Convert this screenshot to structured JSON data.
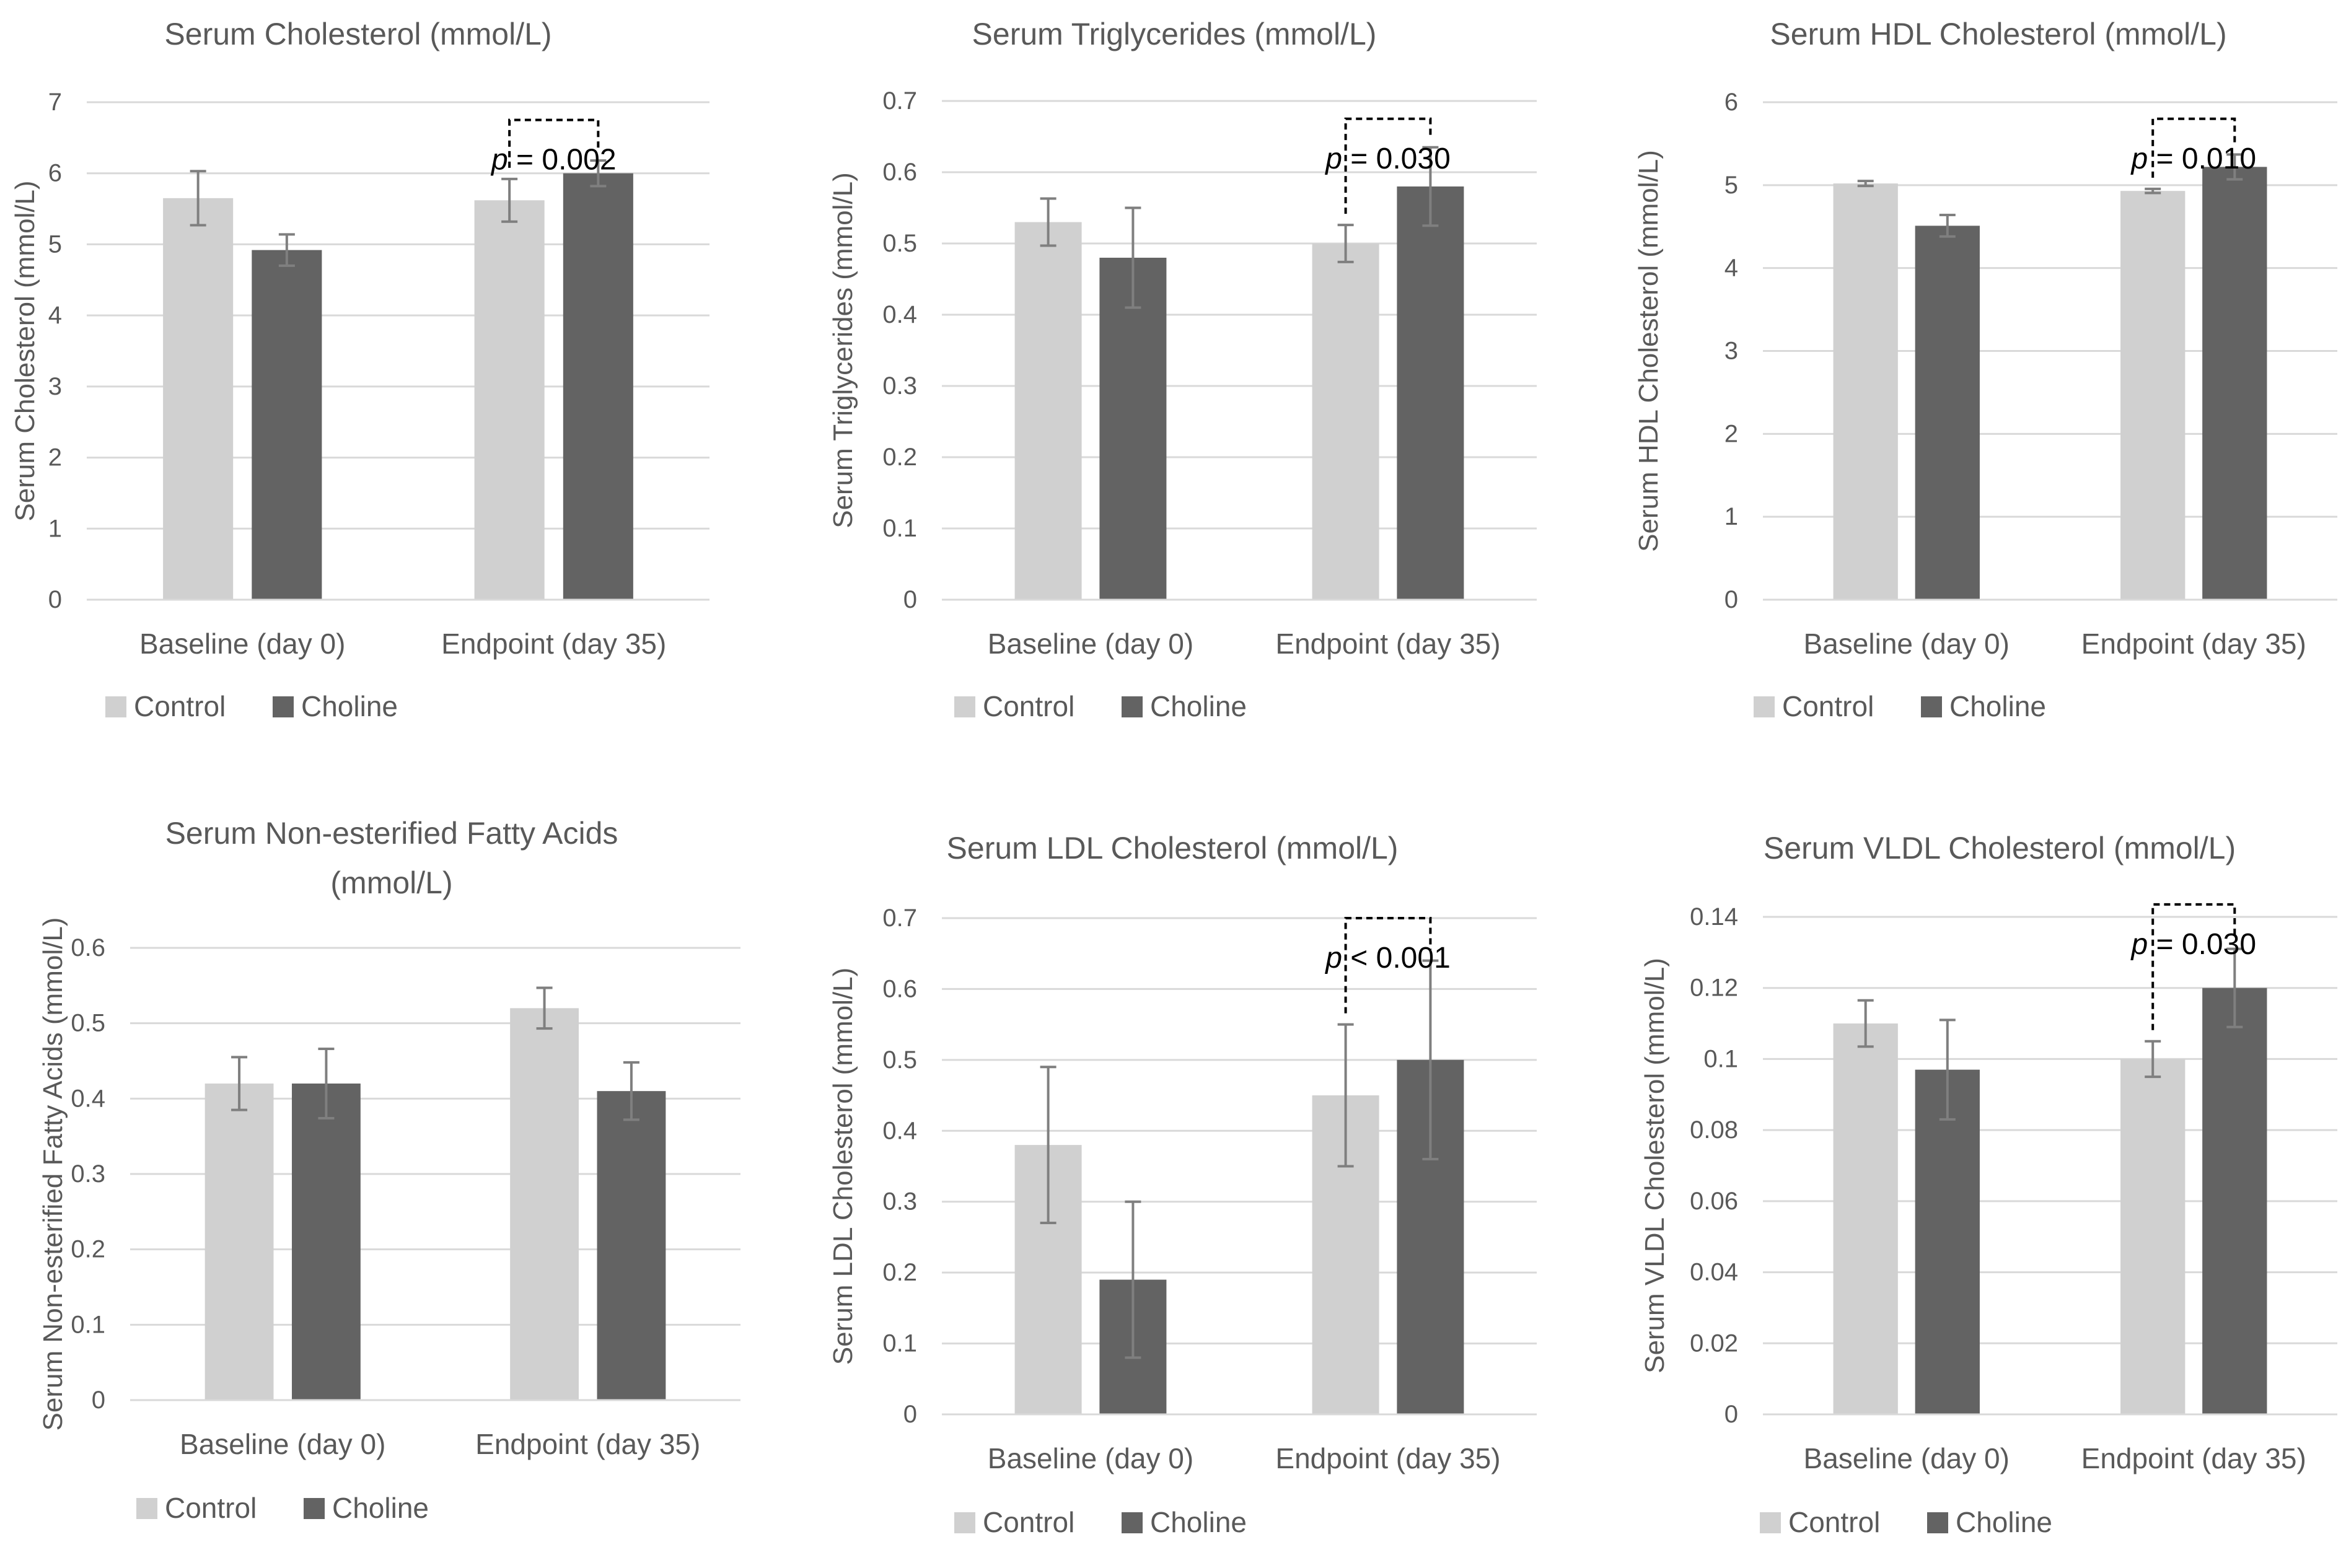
{
  "colors": {
    "control": "#d0d0d0",
    "choline": "#636363",
    "axis_text": "#595959",
    "gridline": "#d9d9d9",
    "error_bar": "#7f7f7f",
    "bracket": "#000000"
  },
  "chart_data": [
    {
      "type": "bar",
      "title": "Serum Cholesterol (mmol/L)",
      "ylabel": "Serum Cholesterol (mmol/L)",
      "xlabel": "",
      "categories": [
        "Baseline (day 0)",
        "Endpoint (day 35)"
      ],
      "ylim": [
        0,
        7
      ],
      "yticks": [
        0,
        1,
        2,
        3,
        4,
        5,
        6,
        7
      ],
      "ytick_labels": [
        "0",
        "1",
        "2",
        "3",
        "4",
        "5",
        "6",
        "7"
      ],
      "grid": true,
      "legend": "bottom",
      "series": [
        {
          "name": "Control",
          "values": [
            5.65,
            5.62
          ],
          "errors": [
            0.38,
            0.3
          ]
        },
        {
          "name": "Choline",
          "values": [
            4.92,
            6.0
          ],
          "errors": [
            0.22,
            0.18
          ]
        }
      ],
      "annotation": {
        "p_label": "p",
        "p_text": " = 0.002",
        "from": [
          0,
          1
        ],
        "to": [
          1,
          1
        ],
        "y": 6.75
      }
    },
    {
      "type": "bar",
      "title": "Serum Triglycerides (mmol/L)",
      "ylabel": "Serum Triglycerides (mmol/L)",
      "xlabel": "",
      "categories": [
        "Baseline (day 0)",
        "Endpoint (day 35)"
      ],
      "ylim": [
        0,
        0.7
      ],
      "yticks": [
        0,
        0.1,
        0.2,
        0.3,
        0.4,
        0.5,
        0.6,
        0.7
      ],
      "ytick_labels": [
        "0",
        "0.1",
        "0.2",
        "0.3",
        "0.4",
        "0.5",
        "0.6",
        "0.7"
      ],
      "grid": true,
      "legend": "bottom",
      "series": [
        {
          "name": "Control",
          "values": [
            0.53,
            0.5
          ],
          "errors": [
            0.033,
            0.026
          ]
        },
        {
          "name": "Choline",
          "values": [
            0.48,
            0.58
          ],
          "errors": [
            0.07,
            0.055
          ]
        }
      ],
      "annotation": {
        "p_label": "p",
        "p_text": " = 0.030",
        "from": [
          0,
          1
        ],
        "to": [
          1,
          1
        ],
        "y": 0.675
      }
    },
    {
      "type": "bar",
      "title": "Serum HDL Cholesterol (mmol/L)",
      "ylabel": "Serum HDL Cholesterol (mmol/L)",
      "xlabel": "",
      "categories": [
        "Baseline (day 0)",
        "Endpoint (day 35)"
      ],
      "ylim": [
        0,
        6
      ],
      "yticks": [
        0,
        1,
        2,
        3,
        4,
        5,
        6
      ],
      "ytick_labels": [
        "0",
        "1",
        "2",
        "3",
        "4",
        "5",
        "6"
      ],
      "grid": true,
      "legend": "bottom",
      "series": [
        {
          "name": "Control",
          "values": [
            5.02,
            4.93
          ],
          "errors": [
            0.03,
            0.025
          ]
        },
        {
          "name": "Choline",
          "values": [
            4.51,
            5.22
          ],
          "errors": [
            0.13,
            0.15
          ]
        }
      ],
      "annotation": {
        "p_label": "p",
        "p_text": " = 0.010",
        "from": [
          0,
          1
        ],
        "to": [
          1,
          1
        ],
        "y": 5.8
      }
    },
    {
      "type": "bar",
      "title": "Serum Non-esterified Fatty Acids (mmol/L)",
      "ylabel": "Serum Non-esterified Fatty Acids (mmol/L)",
      "xlabel": "",
      "categories": [
        "Baseline (day 0)",
        "Endpoint (day 35)"
      ],
      "ylim": [
        0,
        0.6
      ],
      "yticks": [
        0,
        0.1,
        0.2,
        0.3,
        0.4,
        0.5,
        0.6
      ],
      "ytick_labels": [
        "0",
        "0.1",
        "0.2",
        "0.3",
        "0.4",
        "0.5",
        "0.6"
      ],
      "grid": true,
      "legend": "bottom",
      "series": [
        {
          "name": "Control",
          "values": [
            0.42,
            0.52
          ],
          "errors": [
            0.035,
            0.027
          ]
        },
        {
          "name": "Choline",
          "values": [
            0.42,
            0.41
          ],
          "errors": [
            0.046,
            0.038
          ]
        }
      ],
      "annotation": null
    },
    {
      "type": "bar",
      "title": "Serum LDL Cholesterol (mmol/L)",
      "ylabel": "Serum LDL Cholesterol (mmol/L)",
      "xlabel": "",
      "categories": [
        "Baseline (day 0)",
        "Endpoint (day 35)"
      ],
      "ylim": [
        0,
        0.7
      ],
      "yticks": [
        0,
        0.1,
        0.2,
        0.3,
        0.4,
        0.5,
        0.6,
        0.7
      ],
      "ytick_labels": [
        "0",
        "0.1",
        "0.2",
        "0.3",
        "0.4",
        "0.5",
        "0.6",
        "0.7"
      ],
      "grid": true,
      "legend": "bottom",
      "series": [
        {
          "name": "Control",
          "values": [
            0.38,
            0.45
          ],
          "errors": [
            0.11,
            0.1
          ]
        },
        {
          "name": "Choline",
          "values": [
            0.19,
            0.5
          ],
          "errors": [
            0.11,
            0.14
          ]
        }
      ],
      "annotation": {
        "p_label": "p",
        "p_text": " < 0.001",
        "from": [
          0,
          1
        ],
        "to": [
          1,
          1
        ],
        "y": 0.7
      }
    },
    {
      "type": "bar",
      "title": "Serum VLDL Cholesterol (mmol/L)",
      "ylabel": "Serum VLDL Cholesterol (mmol/L)",
      "xlabel": "",
      "categories": [
        "Baseline (day 0)",
        "Endpoint (day 35)"
      ],
      "ylim": [
        0,
        0.14
      ],
      "yticks": [
        0,
        0.02,
        0.04,
        0.06,
        0.08,
        0.1,
        0.12,
        0.14
      ],
      "ytick_labels": [
        "0",
        "0.02",
        "0.04",
        "0.06",
        "0.08",
        "0.1",
        "0.12",
        "0.14"
      ],
      "grid": true,
      "legend": "bottom",
      "series": [
        {
          "name": "Control",
          "values": [
            0.11,
            0.1
          ],
          "errors": [
            0.0065,
            0.005
          ]
        },
        {
          "name": "Choline",
          "values": [
            0.097,
            0.12
          ],
          "errors": [
            0.014,
            0.011
          ]
        }
      ],
      "annotation": {
        "p_label": "p",
        "p_text": " = 0.030",
        "from": [
          0,
          1
        ],
        "to": [
          1,
          1
        ],
        "y": 0.1435
      }
    }
  ]
}
